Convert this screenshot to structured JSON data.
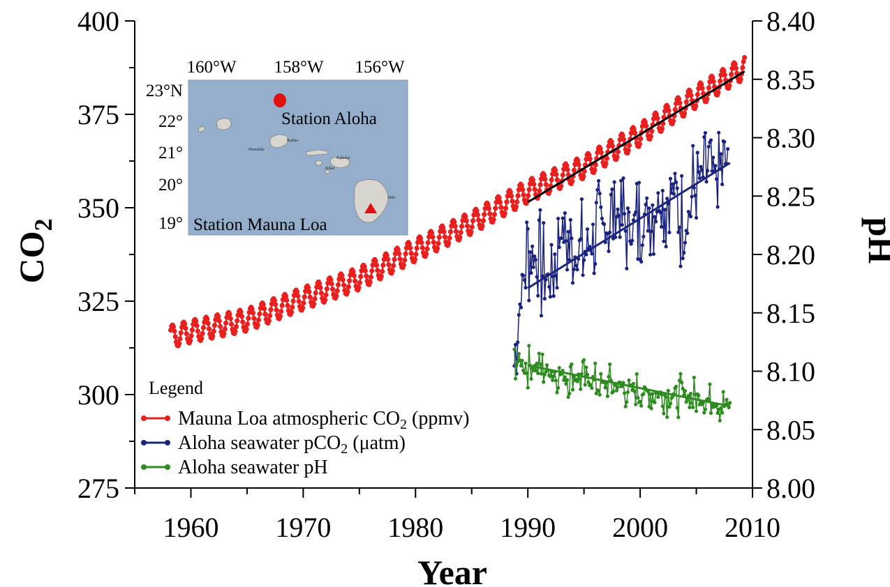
{
  "chart_data": {
    "type": "line",
    "xlabel": "Year",
    "ylabel_left": "CO",
    "ylabel_left_sub": "2",
    "ylabel_right": "pH",
    "xlim": [
      1955,
      2010
    ],
    "ylim_left": [
      275,
      400
    ],
    "ylim_right": [
      8.0,
      8.4
    ],
    "x_ticks": [
      "1960",
      "1970",
      "1980",
      "1990",
      "2000",
      "2010"
    ],
    "y_left_ticks": [
      "275",
      "300",
      "325",
      "350",
      "375",
      "400"
    ],
    "y_right_ticks": [
      "8.00",
      "8.05",
      "8.10",
      "8.15",
      "8.20",
      "8.25",
      "8.30",
      "8.35",
      "8.40"
    ],
    "legend": {
      "title": "Legend",
      "placement": "bottom-left",
      "entries": [
        {
          "text": "Mauna Loa atmospheric CO",
          "sub": "2",
          "tail": " (ppmv)",
          "color": "#e8201f"
        },
        {
          "text": "Aloha seawater pCO",
          "sub": "2",
          "tail": " (μatm)",
          "color": "#1a237e"
        },
        {
          "text": "Aloha seawater pH",
          "sub": "",
          "tail": "",
          "color": "#2e8b1f"
        }
      ]
    },
    "series": [
      {
        "name": "Mauna Loa atmospheric CO2 (ppmv)",
        "axis": "left",
        "color": "#e8201f",
        "x": [
          1958.2,
          1960,
          1965,
          1970,
          1975,
          1980,
          1985,
          1990,
          1995,
          2000,
          2005,
          2009.3
        ],
        "values": [
          315.5,
          316.9,
          320.0,
          325.7,
          331.1,
          338.7,
          346.0,
          354.4,
          360.9,
          369.6,
          379.8,
          387.5
        ],
        "seasonal_amplitude": 3.0,
        "trend": {
          "x": [
            1990,
            2009.3
          ],
          "values": [
            351.5,
            386.5
          ],
          "color": "#000000"
        }
      },
      {
        "name": "Aloha seawater pCO2 (μatm)",
        "axis": "left",
        "color": "#1a237e",
        "x": [
          1988.8,
          1989.2,
          1990,
          1991,
          1992,
          1993,
          1994,
          1995,
          1996,
          1997,
          1998,
          1999,
          2000,
          2001,
          2002,
          2003,
          2004,
          2005,
          2006,
          2007,
          2007.8
        ],
        "values": [
          308,
          322,
          339,
          335,
          330,
          345,
          337,
          338,
          342,
          346,
          349,
          343,
          346,
          351,
          352,
          355,
          344,
          357,
          360,
          358,
          363
        ],
        "noise_amplitude": 17,
        "trend": {
          "x": [
            1990,
            2008
          ],
          "values": [
            328.5,
            362.0
          ],
          "color": "#1a237e"
        }
      },
      {
        "name": "Aloha seawater pH",
        "axis": "right",
        "color": "#2e8b1f",
        "x": [
          1988.8,
          1990,
          1992,
          1994,
          1996,
          1998,
          2000,
          2002,
          2004,
          2006,
          2008
        ],
        "values": [
          8.11,
          8.105,
          8.1,
          8.095,
          8.09,
          8.087,
          8.083,
          8.08,
          8.078,
          8.075,
          8.07
        ],
        "noise_amplitude": 0.02,
        "trend": {
          "x": [
            1990,
            2008
          ],
          "values": [
            8.105,
            8.07
          ],
          "color": "#2e8b1f"
        }
      }
    ]
  },
  "inset_map": {
    "lon_labels": [
      "160°W",
      "158°W",
      "156°W"
    ],
    "lat_labels": [
      "23°N",
      "22°",
      "21°",
      "20°",
      "19°"
    ],
    "station_aloha": "Station Aloha",
    "station_mauna_loa": "Station Mauna Loa",
    "place_labels": [
      "Honolulu",
      "Kailua",
      "Kahului",
      "Kihei",
      "Hilo"
    ],
    "water_color": "#94aecb",
    "island_color": "#d9d6d0",
    "marker_color": "#e01010"
  }
}
